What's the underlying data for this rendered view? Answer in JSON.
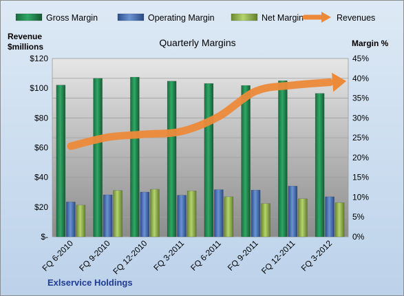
{
  "chart_data": {
    "type": "bar",
    "title": "Quarterly Margins",
    "categories": [
      "FQ 6-2010",
      "FQ 9-2010",
      "FQ 12-2010",
      "FQ 3-2011",
      "FQ 6-2011",
      "FQ 9-2011",
      "FQ 12-2011",
      "FQ 3-2012"
    ],
    "series": [
      {
        "name": "Gross Margin",
        "axis": "right",
        "values": [
          38.3,
          40.0,
          40.3,
          39.3,
          38.7,
          38.2,
          39.4,
          36.2
        ]
      },
      {
        "name": "Operating Margin",
        "axis": "right",
        "values": [
          8.8,
          10.6,
          11.3,
          10.5,
          11.9,
          11.8,
          12.8,
          10.1
        ]
      },
      {
        "name": "Net Margin",
        "axis": "right",
        "values": [
          8.0,
          11.7,
          12.0,
          11.6,
          10.1,
          8.4,
          9.6,
          8.6
        ]
      },
      {
        "name": "Revenues",
        "axis": "left",
        "type": "line",
        "values": [
          61,
          67,
          69,
          71,
          81,
          98,
          102,
          104
        ]
      }
    ],
    "ylabel_left": "Revenue $millions",
    "ylabel_right": "Margin %",
    "ylim_left": [
      0,
      120
    ],
    "ylim_right": [
      0,
      45
    ],
    "ytick_labels_left": [
      "$-",
      "$20",
      "$40",
      "$60",
      "$80",
      "$100",
      "$120"
    ],
    "ytick_labels_right": [
      "0%",
      "5%",
      "10%",
      "15%",
      "20%",
      "25%",
      "30%",
      "35%",
      "40%",
      "45%"
    ],
    "grid": true,
    "legend_position": "top",
    "colors": {
      "gross": "#217a4a",
      "operating": "#4472c4",
      "net": "#9bbb59",
      "revenues": "#ed8a3a"
    }
  },
  "footer": "Exlservice Holdings"
}
